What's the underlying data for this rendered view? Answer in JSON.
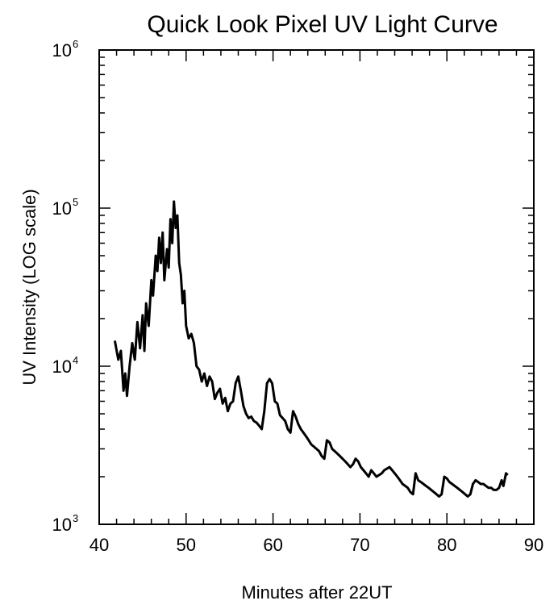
{
  "chart_data": {
    "type": "line",
    "title": "Quick Look Pixel UV Light Curve",
    "xlabel": "Minutes after 22UT",
    "ylabel": "UV Intensity (LOG scale)",
    "y_scale": "log",
    "xlim": [
      40,
      90
    ],
    "ylim": [
      1000,
      1000000
    ],
    "x_ticks": [
      40,
      50,
      60,
      70,
      80,
      90
    ],
    "x_tick_labels": [
      "40",
      "50",
      "60",
      "70",
      "80",
      "90"
    ],
    "y_ticks": [
      1000,
      10000,
      100000,
      1000000
    ],
    "y_tick_base": "10",
    "y_tick_exponents": [
      "3",
      "4",
      "5",
      "6"
    ],
    "grid": false,
    "series": [
      {
        "x": [
          41.8,
          42.2,
          42.5,
          42.8,
          43.0,
          43.2,
          43.5,
          43.8,
          44.1,
          44.4,
          44.7,
          45.0,
          45.2,
          45.4,
          45.7,
          46.0,
          46.2,
          46.5,
          46.7,
          46.9,
          47.1,
          47.3,
          47.5,
          47.8,
          48.0,
          48.2,
          48.4,
          48.6,
          48.8,
          49.0,
          49.2,
          49.4,
          49.6,
          49.8,
          50.0,
          50.3,
          50.6,
          50.9,
          51.2,
          51.5,
          51.8,
          52.1,
          52.4,
          52.7,
          53.0,
          53.3,
          53.6,
          53.9,
          54.2,
          54.5,
          54.8,
          55.1,
          55.4,
          55.7,
          56.0,
          56.3,
          56.6,
          56.9,
          57.2,
          57.5,
          57.8,
          58.1,
          58.4,
          58.7,
          59.0,
          59.3,
          59.6,
          59.9,
          60.2,
          60.5,
          60.8,
          61.1,
          61.4,
          61.7,
          62.0,
          62.3,
          62.6,
          62.9,
          63.2,
          63.5,
          63.8,
          64.1,
          64.4,
          64.7,
          65.0,
          65.3,
          65.6,
          65.9,
          66.2,
          66.5,
          66.8,
          67.1,
          67.4,
          67.7,
          68.0,
          68.3,
          68.6,
          68.9,
          69.2,
          69.5,
          69.8,
          70.1,
          70.4,
          70.7,
          71.0,
          71.3,
          71.6,
          71.9,
          72.2,
          72.5,
          72.8,
          73.1,
          73.4,
          73.7,
          74.0,
          74.3,
          74.6,
          74.9,
          75.2,
          75.5,
          75.8,
          76.1,
          76.4,
          76.7,
          77.0,
          77.3,
          77.6,
          77.9,
          78.2,
          78.5,
          78.8,
          79.1,
          79.4,
          79.7,
          80.0,
          80.3,
          80.6,
          80.9,
          81.2,
          81.5,
          81.8,
          82.1,
          82.4,
          82.7,
          83.0,
          83.3,
          83.6,
          83.9,
          84.2,
          84.5,
          84.8,
          85.1,
          85.4,
          85.7,
          86.0,
          86.3,
          86.5,
          86.8,
          87.0
        ],
        "y": [
          14500,
          11000,
          12500,
          7000,
          9000,
          6500,
          10000,
          14000,
          11000,
          19000,
          13000,
          21000,
          12500,
          25000,
          18000,
          35000,
          28000,
          50000,
          40000,
          65000,
          45000,
          70000,
          35000,
          55000,
          42000,
          85000,
          60000,
          110000,
          75000,
          90000,
          45000,
          38000,
          25000,
          30000,
          18000,
          15000,
          16000,
          14000,
          10000,
          9500,
          8000,
          9000,
          7500,
          8600,
          8000,
          6200,
          6800,
          7200,
          5800,
          6300,
          5200,
          5800,
          6000,
          7800,
          8600,
          7000,
          5600,
          5000,
          4700,
          4800,
          4500,
          4400,
          4200,
          4000,
          5200,
          7800,
          8300,
          7800,
          6000,
          5800,
          4900,
          4700,
          4500,
          4000,
          3800,
          5200,
          4800,
          4300,
          4000,
          3800,
          3600,
          3400,
          3200,
          3100,
          3000,
          2900,
          2700,
          2600,
          3400,
          3300,
          3000,
          2900,
          2800,
          2700,
          2600,
          2500,
          2400,
          2300,
          2400,
          2600,
          2500,
          2300,
          2200,
          2100,
          2000,
          2200,
          2100,
          2000,
          2050,
          2100,
          2200,
          2250,
          2300,
          2200,
          2100,
          2000,
          1900,
          1800,
          1750,
          1700,
          1600,
          1550,
          2100,
          1900,
          1850,
          1800,
          1750,
          1700,
          1650,
          1600,
          1550,
          1500,
          1550,
          2000,
          1950,
          1850,
          1800,
          1750,
          1700,
          1650,
          1600,
          1550,
          1500,
          1550,
          1800,
          1900,
          1850,
          1800,
          1800,
          1750,
          1700,
          1700,
          1650,
          1650,
          1700,
          1900,
          1750,
          2100,
          2050
        ]
      }
    ]
  }
}
